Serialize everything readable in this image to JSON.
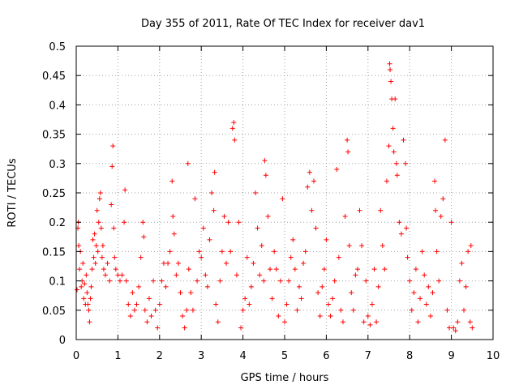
{
  "chart_data": {
    "type": "scatter",
    "title": "Day 355 of 2011, Rate Of TEC Index for receiver dav1",
    "xlabel": "GPS time / hours",
    "ylabel": "ROTI / TECUs",
    "xlim": [
      0,
      10
    ],
    "ylim": [
      0,
      0.5
    ],
    "xticks": [
      {
        "value": 0,
        "label": "0"
      },
      {
        "value": 1,
        "label": "1"
      },
      {
        "value": 2,
        "label": "2"
      },
      {
        "value": 3,
        "label": "3"
      },
      {
        "value": 4,
        "label": "4"
      },
      {
        "value": 5,
        "label": "5"
      },
      {
        "value": 6,
        "label": "6"
      },
      {
        "value": 7,
        "label": "7"
      },
      {
        "value": 8,
        "label": "8"
      },
      {
        "value": 9,
        "label": "9"
      },
      {
        "value": 10,
        "label": "10"
      }
    ],
    "yticks": [
      {
        "value": 0,
        "label": "0"
      },
      {
        "value": 0.05,
        "label": "0.05"
      },
      {
        "value": 0.1,
        "label": "0.1"
      },
      {
        "value": 0.15,
        "label": "0.15"
      },
      {
        "value": 0.2,
        "label": "0.2"
      },
      {
        "value": 0.25,
        "label": "0.25"
      },
      {
        "value": 0.3,
        "label": "0.3"
      },
      {
        "value": 0.35,
        "label": "0.35"
      },
      {
        "value": 0.4,
        "label": "0.4"
      },
      {
        "value": 0.45,
        "label": "0.45"
      },
      {
        "value": 0.5,
        "label": "0.5"
      }
    ],
    "grid": true,
    "marker": "+",
    "color": "#ff0000",
    "series": [
      {
        "name": "ROTI",
        "points": [
          [
            0.02,
            0.085
          ],
          [
            0.04,
            0.19
          ],
          [
            0.05,
            0.2
          ],
          [
            0.06,
            0.16
          ],
          [
            0.08,
            0.12
          ],
          [
            0.1,
            0.15
          ],
          [
            0.12,
            0.09
          ],
          [
            0.14,
            0.1
          ],
          [
            0.16,
            0.13
          ],
          [
            0.18,
            0.07
          ],
          [
            0.2,
            0.095
          ],
          [
            0.22,
            0.06
          ],
          [
            0.24,
            0.11
          ],
          [
            0.26,
            0.08
          ],
          [
            0.28,
            0.06
          ],
          [
            0.3,
            0.05
          ],
          [
            0.32,
            0.03
          ],
          [
            0.34,
            0.07
          ],
          [
            0.36,
            0.09
          ],
          [
            0.38,
            0.12
          ],
          [
            0.4,
            0.17
          ],
          [
            0.42,
            0.14
          ],
          [
            0.44,
            0.18
          ],
          [
            0.46,
            0.13
          ],
          [
            0.48,
            0.16
          ],
          [
            0.5,
            0.22
          ],
          [
            0.52,
            0.15
          ],
          [
            0.54,
            0.2
          ],
          [
            0.56,
            0.24
          ],
          [
            0.58,
            0.25
          ],
          [
            0.6,
            0.19
          ],
          [
            0.62,
            0.14
          ],
          [
            0.64,
            0.16
          ],
          [
            0.66,
            0.12
          ],
          [
            0.7,
            0.11
          ],
          [
            0.75,
            0.13
          ],
          [
            0.8,
            0.1
          ],
          [
            0.84,
            0.23
          ],
          [
            0.86,
            0.295
          ],
          [
            0.88,
            0.33
          ],
          [
            0.9,
            0.19
          ],
          [
            0.92,
            0.14
          ],
          [
            0.95,
            0.12
          ],
          [
            1.0,
            0.11
          ],
          [
            1.05,
            0.1
          ],
          [
            1.1,
            0.11
          ],
          [
            1.15,
            0.2
          ],
          [
            1.17,
            0.255
          ],
          [
            1.2,
            0.1
          ],
          [
            1.25,
            0.06
          ],
          [
            1.3,
            0.04
          ],
          [
            1.35,
            0.08
          ],
          [
            1.4,
            0.05
          ],
          [
            1.45,
            0.06
          ],
          [
            1.5,
            0.09
          ],
          [
            1.55,
            0.14
          ],
          [
            1.6,
            0.2
          ],
          [
            1.62,
            0.175
          ],
          [
            1.65,
            0.05
          ],
          [
            1.7,
            0.03
          ],
          [
            1.75,
            0.07
          ],
          [
            1.8,
            0.04
          ],
          [
            1.85,
            0.1
          ],
          [
            1.9,
            0.05
          ],
          [
            1.95,
            0.02
          ],
          [
            2.0,
            0.06
          ],
          [
            2.05,
            0.1
          ],
          [
            2.1,
            0.13
          ],
          [
            2.15,
            0.09
          ],
          [
            2.2,
            0.13
          ],
          [
            2.25,
            0.15
          ],
          [
            2.3,
            0.27
          ],
          [
            2.32,
            0.21
          ],
          [
            2.35,
            0.18
          ],
          [
            2.4,
            0.11
          ],
          [
            2.45,
            0.13
          ],
          [
            2.5,
            0.08
          ],
          [
            2.55,
            0.04
          ],
          [
            2.6,
            0.02
          ],
          [
            2.65,
            0.05
          ],
          [
            2.68,
            0.3
          ],
          [
            2.7,
            0.12
          ],
          [
            2.75,
            0.08
          ],
          [
            2.8,
            0.05
          ],
          [
            2.85,
            0.24
          ],
          [
            2.9,
            0.1
          ],
          [
            2.95,
            0.15
          ],
          [
            3.0,
            0.14
          ],
          [
            3.05,
            0.19
          ],
          [
            3.1,
            0.11
          ],
          [
            3.15,
            0.09
          ],
          [
            3.2,
            0.17
          ],
          [
            3.25,
            0.25
          ],
          [
            3.3,
            0.22
          ],
          [
            3.32,
            0.285
          ],
          [
            3.35,
            0.06
          ],
          [
            3.4,
            0.03
          ],
          [
            3.45,
            0.1
          ],
          [
            3.5,
            0.15
          ],
          [
            3.55,
            0.21
          ],
          [
            3.6,
            0.13
          ],
          [
            3.65,
            0.2
          ],
          [
            3.7,
            0.15
          ],
          [
            3.75,
            0.36
          ],
          [
            3.78,
            0.37
          ],
          [
            3.8,
            0.34
          ],
          [
            3.85,
            0.11
          ],
          [
            3.9,
            0.2
          ],
          [
            3.95,
            0.02
          ],
          [
            4.0,
            0.05
          ],
          [
            4.05,
            0.07
          ],
          [
            4.1,
            0.14
          ],
          [
            4.15,
            0.06
          ],
          [
            4.2,
            0.09
          ],
          [
            4.25,
            0.13
          ],
          [
            4.3,
            0.25
          ],
          [
            4.35,
            0.19
          ],
          [
            4.4,
            0.11
          ],
          [
            4.45,
            0.16
          ],
          [
            4.5,
            0.1
          ],
          [
            4.52,
            0.305
          ],
          [
            4.55,
            0.28
          ],
          [
            4.6,
            0.21
          ],
          [
            4.65,
            0.12
          ],
          [
            4.7,
            0.07
          ],
          [
            4.75,
            0.15
          ],
          [
            4.8,
            0.12
          ],
          [
            4.85,
            0.04
          ],
          [
            4.9,
            0.1
          ],
          [
            4.95,
            0.24
          ],
          [
            5.0,
            0.03
          ],
          [
            5.05,
            0.06
          ],
          [
            5.1,
            0.1
          ],
          [
            5.15,
            0.14
          ],
          [
            5.2,
            0.17
          ],
          [
            5.25,
            0.12
          ],
          [
            5.3,
            0.05
          ],
          [
            5.35,
            0.09
          ],
          [
            5.4,
            0.07
          ],
          [
            5.45,
            0.13
          ],
          [
            5.5,
            0.15
          ],
          [
            5.55,
            0.26
          ],
          [
            5.6,
            0.285
          ],
          [
            5.65,
            0.22
          ],
          [
            5.7,
            0.27
          ],
          [
            5.75,
            0.19
          ],
          [
            5.8,
            0.08
          ],
          [
            5.85,
            0.04
          ],
          [
            5.9,
            0.09
          ],
          [
            5.95,
            0.12
          ],
          [
            6.0,
            0.17
          ],
          [
            6.05,
            0.06
          ],
          [
            6.1,
            0.04
          ],
          [
            6.15,
            0.07
          ],
          [
            6.2,
            0.1
          ],
          [
            6.25,
            0.29
          ],
          [
            6.3,
            0.14
          ],
          [
            6.35,
            0.05
          ],
          [
            6.4,
            0.03
          ],
          [
            6.45,
            0.21
          ],
          [
            6.5,
            0.34
          ],
          [
            6.52,
            0.32
          ],
          [
            6.55,
            0.16
          ],
          [
            6.6,
            0.08
          ],
          [
            6.65,
            0.05
          ],
          [
            6.7,
            0.11
          ],
          [
            6.75,
            0.12
          ],
          [
            6.8,
            0.22
          ],
          [
            6.85,
            0.16
          ],
          [
            6.9,
            0.03
          ],
          [
            6.95,
            0.1
          ],
          [
            7.0,
            0.04
          ],
          [
            7.05,
            0.025
          ],
          [
            7.1,
            0.06
          ],
          [
            7.15,
            0.12
          ],
          [
            7.2,
            0.03
          ],
          [
            7.25,
            0.09
          ],
          [
            7.3,
            0.22
          ],
          [
            7.35,
            0.16
          ],
          [
            7.4,
            0.12
          ],
          [
            7.45,
            0.27
          ],
          [
            7.5,
            0.33
          ],
          [
            7.52,
            0.47
          ],
          [
            7.53,
            0.46
          ],
          [
            7.55,
            0.44
          ],
          [
            7.57,
            0.41
          ],
          [
            7.6,
            0.36
          ],
          [
            7.62,
            0.32
          ],
          [
            7.65,
            0.41
          ],
          [
            7.68,
            0.3
          ],
          [
            7.7,
            0.28
          ],
          [
            7.75,
            0.2
          ],
          [
            7.8,
            0.18
          ],
          [
            7.85,
            0.34
          ],
          [
            7.9,
            0.3
          ],
          [
            7.92,
            0.19
          ],
          [
            7.95,
            0.14
          ],
          [
            8.0,
            0.1
          ],
          [
            8.05,
            0.05
          ],
          [
            8.1,
            0.08
          ],
          [
            8.15,
            0.12
          ],
          [
            8.2,
            0.03
          ],
          [
            8.25,
            0.07
          ],
          [
            8.3,
            0.15
          ],
          [
            8.35,
            0.11
          ],
          [
            8.4,
            0.06
          ],
          [
            8.45,
            0.09
          ],
          [
            8.5,
            0.04
          ],
          [
            8.55,
            0.08
          ],
          [
            8.6,
            0.27
          ],
          [
            8.62,
            0.22
          ],
          [
            8.65,
            0.15
          ],
          [
            8.7,
            0.1
          ],
          [
            8.75,
            0.21
          ],
          [
            8.8,
            0.24
          ],
          [
            8.85,
            0.34
          ],
          [
            8.9,
            0.05
          ],
          [
            8.95,
            0.02
          ],
          [
            9.0,
            0.2
          ],
          [
            9.05,
            0.02
          ],
          [
            9.1,
            0.015
          ],
          [
            9.15,
            0.03
          ],
          [
            9.2,
            0.1
          ],
          [
            9.25,
            0.13
          ],
          [
            9.3,
            0.05
          ],
          [
            9.35,
            0.09
          ],
          [
            9.4,
            0.15
          ],
          [
            9.45,
            0.03
          ],
          [
            9.47,
            0.16
          ],
          [
            9.5,
            0.02
          ]
        ]
      }
    ]
  }
}
